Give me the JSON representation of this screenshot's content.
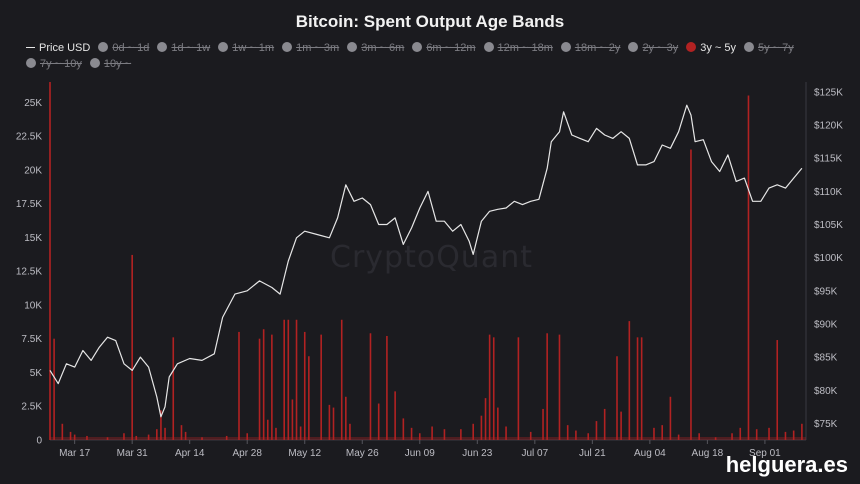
{
  "chart_data": {
    "type": "bar+line",
    "title": "Bitcoin: Spent Output Age Bands",
    "legend": [
      {
        "label": "Price USD",
        "state": "active",
        "kind": "line"
      },
      {
        "label": "0d ~ 1d",
        "state": "hidden"
      },
      {
        "label": "1d ~ 1w",
        "state": "hidden"
      },
      {
        "label": "1w ~ 1m",
        "state": "hidden"
      },
      {
        "label": "1m ~ 3m",
        "state": "hidden"
      },
      {
        "label": "3m ~ 6m",
        "state": "hidden"
      },
      {
        "label": "6m ~ 12m",
        "state": "hidden"
      },
      {
        "label": "12m ~ 18m",
        "state": "hidden"
      },
      {
        "label": "18m ~ 2y",
        "state": "hidden"
      },
      {
        "label": "2y ~ 3y",
        "state": "hidden"
      },
      {
        "label": "3y ~ 5y",
        "state": "active",
        "color": "#b22222"
      },
      {
        "label": "5y ~ 7y",
        "state": "hidden"
      },
      {
        "label": "7y ~ 10y",
        "state": "hidden"
      },
      {
        "label": "10y ~",
        "state": "hidden"
      }
    ],
    "x_tick_labels": [
      "Mar 17",
      "Mar 31",
      "Apr 14",
      "Apr 28",
      "May 12",
      "May 26",
      "Jun 09",
      "Jun 23",
      "Jul 07",
      "Jul 21",
      "Aug 04",
      "Aug 18",
      "Sep 01"
    ],
    "x_range": [
      "2025-03-11",
      "2025-09-11"
    ],
    "y_left": {
      "ticks": [
        "0",
        "2.5K",
        "5K",
        "7.5K",
        "10K",
        "12.5K",
        "15K",
        "17.5K",
        "20K",
        "22.5K",
        "25K"
      ],
      "range": [
        0,
        26500
      ]
    },
    "y_right": {
      "ticks": [
        "$75K",
        "$80K",
        "$85K",
        "$90K",
        "$95K",
        "$100K",
        "$105K",
        "$110K",
        "$115K",
        "$120K",
        "$125K"
      ],
      "range": [
        72500,
        126500
      ]
    },
    "price_series": {
      "name": "Price USD",
      "color": "#e6e6e6",
      "points": [
        [
          "2025-03-11",
          83000
        ],
        [
          "2025-03-13",
          81000
        ],
        [
          "2025-03-15",
          84000
        ],
        [
          "2025-03-17",
          83500
        ],
        [
          "2025-03-19",
          86000
        ],
        [
          "2025-03-21",
          84500
        ],
        [
          "2025-03-23",
          86500
        ],
        [
          "2025-03-25",
          88000
        ],
        [
          "2025-03-27",
          87500
        ],
        [
          "2025-03-29",
          84000
        ],
        [
          "2025-03-31",
          83000
        ],
        [
          "2025-04-02",
          85000
        ],
        [
          "2025-04-04",
          83500
        ],
        [
          "2025-04-06",
          79000
        ],
        [
          "2025-04-07",
          76000
        ],
        [
          "2025-04-08",
          77500
        ],
        [
          "2025-04-09",
          82000
        ],
        [
          "2025-04-11",
          84000
        ],
        [
          "2025-04-14",
          84800
        ],
        [
          "2025-04-17",
          84500
        ],
        [
          "2025-04-20",
          85500
        ],
        [
          "2025-04-22",
          91000
        ],
        [
          "2025-04-25",
          94500
        ],
        [
          "2025-04-28",
          95000
        ],
        [
          "2025-05-01",
          96500
        ],
        [
          "2025-05-04",
          95500
        ],
        [
          "2025-05-06",
          94500
        ],
        [
          "2025-05-08",
          99500
        ],
        [
          "2025-05-10",
          103000
        ],
        [
          "2025-05-12",
          104000
        ],
        [
          "2025-05-15",
          103500
        ],
        [
          "2025-05-18",
          103000
        ],
        [
          "2025-05-20",
          106000
        ],
        [
          "2025-05-22",
          111000
        ],
        [
          "2025-05-24",
          108500
        ],
        [
          "2025-05-26",
          109000
        ],
        [
          "2025-05-28",
          108000
        ],
        [
          "2025-05-30",
          105000
        ],
        [
          "2025-06-01",
          105000
        ],
        [
          "2025-06-03",
          106000
        ],
        [
          "2025-06-05",
          102000
        ],
        [
          "2025-06-07",
          104500
        ],
        [
          "2025-06-09",
          107500
        ],
        [
          "2025-06-11",
          110000
        ],
        [
          "2025-06-13",
          105500
        ],
        [
          "2025-06-15",
          105500
        ],
        [
          "2025-06-17",
          104000
        ],
        [
          "2025-06-19",
          105000
        ],
        [
          "2025-06-21",
          102500
        ],
        [
          "2025-06-22",
          100500
        ],
        [
          "2025-06-24",
          105500
        ],
        [
          "2025-06-26",
          107000
        ],
        [
          "2025-06-28",
          107300
        ],
        [
          "2025-06-30",
          107500
        ],
        [
          "2025-07-02",
          108500
        ],
        [
          "2025-07-04",
          108000
        ],
        [
          "2025-07-06",
          108500
        ],
        [
          "2025-07-08",
          108800
        ],
        [
          "2025-07-10",
          113500
        ],
        [
          "2025-07-11",
          117500
        ],
        [
          "2025-07-13",
          119000
        ],
        [
          "2025-07-14",
          122000
        ],
        [
          "2025-07-16",
          118500
        ],
        [
          "2025-07-18",
          118000
        ],
        [
          "2025-07-20",
          117500
        ],
        [
          "2025-07-22",
          119500
        ],
        [
          "2025-07-24",
          118500
        ],
        [
          "2025-07-26",
          118000
        ],
        [
          "2025-07-28",
          119000
        ],
        [
          "2025-07-30",
          118000
        ],
        [
          "2025-08-01",
          114000
        ],
        [
          "2025-08-03",
          114000
        ],
        [
          "2025-08-05",
          114500
        ],
        [
          "2025-08-07",
          117000
        ],
        [
          "2025-08-09",
          116500
        ],
        [
          "2025-08-11",
          119000
        ],
        [
          "2025-08-13",
          123000
        ],
        [
          "2025-08-14",
          121500
        ],
        [
          "2025-08-15",
          117500
        ],
        [
          "2025-08-17",
          117800
        ],
        [
          "2025-08-19",
          114500
        ],
        [
          "2025-08-21",
          113000
        ],
        [
          "2025-08-23",
          115500
        ],
        [
          "2025-08-25",
          111500
        ],
        [
          "2025-08-27",
          112000
        ],
        [
          "2025-08-29",
          108500
        ],
        [
          "2025-08-31",
          108500
        ],
        [
          "2025-09-02",
          110500
        ],
        [
          "2025-09-04",
          111000
        ],
        [
          "2025-09-06",
          110500
        ],
        [
          "2025-09-08",
          112000
        ],
        [
          "2025-09-10",
          113500
        ]
      ]
    },
    "bar_series": {
      "name": "3y ~ 5y",
      "color": "#b22222",
      "points": [
        [
          "2025-03-11",
          26500
        ],
        [
          "2025-03-12",
          7500
        ],
        [
          "2025-03-14",
          1200
        ],
        [
          "2025-03-16",
          600
        ],
        [
          "2025-03-17",
          400
        ],
        [
          "2025-03-20",
          300
        ],
        [
          "2025-03-25",
          200
        ],
        [
          "2025-03-29",
          500
        ],
        [
          "2025-03-31",
          13700
        ],
        [
          "2025-04-01",
          300
        ],
        [
          "2025-04-04",
          400
        ],
        [
          "2025-04-06",
          800
        ],
        [
          "2025-04-07",
          2200
        ],
        [
          "2025-04-08",
          900
        ],
        [
          "2025-04-10",
          7600
        ],
        [
          "2025-04-12",
          1100
        ],
        [
          "2025-04-13",
          600
        ],
        [
          "2025-04-17",
          200
        ],
        [
          "2025-04-23",
          300
        ],
        [
          "2025-04-26",
          8000
        ],
        [
          "2025-04-28",
          500
        ],
        [
          "2025-05-01",
          7500
        ],
        [
          "2025-05-02",
          8200
        ],
        [
          "2025-05-03",
          1500
        ],
        [
          "2025-05-04",
          7800
        ],
        [
          "2025-05-05",
          900
        ],
        [
          "2025-05-07",
          8900
        ],
        [
          "2025-05-08",
          8900
        ],
        [
          "2025-05-09",
          3000
        ],
        [
          "2025-05-10",
          8900
        ],
        [
          "2025-05-11",
          1000
        ],
        [
          "2025-05-12",
          8000
        ],
        [
          "2025-05-13",
          6200
        ],
        [
          "2025-05-16",
          7800
        ],
        [
          "2025-05-18",
          2600
        ],
        [
          "2025-05-19",
          2400
        ],
        [
          "2025-05-21",
          8900
        ],
        [
          "2025-05-22",
          3200
        ],
        [
          "2025-05-23",
          1200
        ],
        [
          "2025-05-28",
          7900
        ],
        [
          "2025-05-30",
          2700
        ],
        [
          "2025-06-01",
          7700
        ],
        [
          "2025-06-03",
          3600
        ],
        [
          "2025-06-05",
          1600
        ],
        [
          "2025-06-07",
          900
        ],
        [
          "2025-06-09",
          500
        ],
        [
          "2025-06-12",
          1000
        ],
        [
          "2025-06-15",
          800
        ],
        [
          "2025-06-19",
          800
        ],
        [
          "2025-06-22",
          1200
        ],
        [
          "2025-06-24",
          1800
        ],
        [
          "2025-06-25",
          3100
        ],
        [
          "2025-06-26",
          7800
        ],
        [
          "2025-06-27",
          7600
        ],
        [
          "2025-06-28",
          2400
        ],
        [
          "2025-06-30",
          1000
        ],
        [
          "2025-07-03",
          7600
        ],
        [
          "2025-07-06",
          600
        ],
        [
          "2025-07-09",
          2300
        ],
        [
          "2025-07-10",
          7900
        ],
        [
          "2025-07-13",
          7800
        ],
        [
          "2025-07-15",
          1100
        ],
        [
          "2025-07-17",
          700
        ],
        [
          "2025-07-20",
          500
        ],
        [
          "2025-07-22",
          1400
        ],
        [
          "2025-07-24",
          2300
        ],
        [
          "2025-07-27",
          6200
        ],
        [
          "2025-07-28",
          2100
        ],
        [
          "2025-07-30",
          8800
        ],
        [
          "2025-08-01",
          7600
        ],
        [
          "2025-08-02",
          7600
        ],
        [
          "2025-08-05",
          900
        ],
        [
          "2025-08-07",
          1100
        ],
        [
          "2025-08-09",
          3200
        ],
        [
          "2025-08-11",
          400
        ],
        [
          "2025-08-14",
          21500
        ],
        [
          "2025-08-16",
          500
        ],
        [
          "2025-08-20",
          200
        ],
        [
          "2025-08-24",
          500
        ],
        [
          "2025-08-26",
          900
        ],
        [
          "2025-08-28",
          25500
        ],
        [
          "2025-08-30",
          800
        ],
        [
          "2025-09-02",
          900
        ],
        [
          "2025-09-04",
          7400
        ],
        [
          "2025-09-06",
          600
        ],
        [
          "2025-09-08",
          700
        ],
        [
          "2025-09-10",
          1200
        ]
      ]
    }
  },
  "watermark": "CryptoQuant",
  "brand": "helguera.es"
}
